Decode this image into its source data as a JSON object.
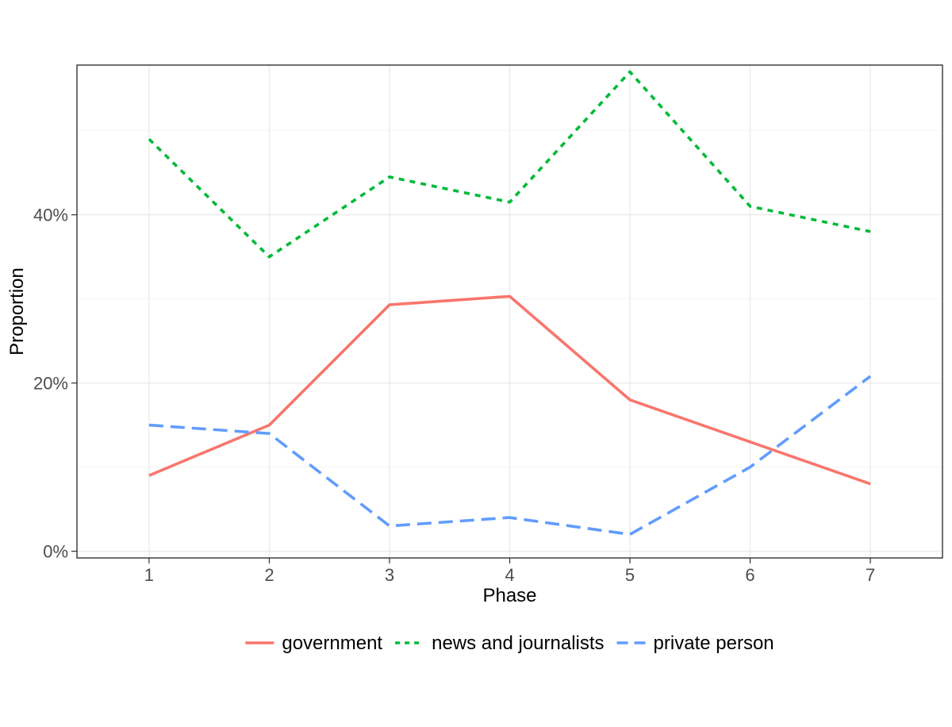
{
  "chart_data": {
    "type": "line",
    "xlabel": "Phase",
    "ylabel": "Proportion",
    "x": [
      1,
      2,
      3,
      4,
      5,
      6,
      7
    ],
    "x_ticks": [
      "1",
      "2",
      "3",
      "4",
      "5",
      "6",
      "7"
    ],
    "xlim": [
      0.4,
      7.6
    ],
    "ylim": [
      -0.008,
      0.578
    ],
    "y_ticks": [
      0,
      0.2,
      0.4
    ],
    "y_tick_labels": [
      "0%",
      "20%",
      "40%"
    ],
    "y_minor_ticks": [
      0.1,
      0.3,
      0.5
    ],
    "grid": true,
    "legend_position": "bottom",
    "series": [
      {
        "name": "government",
        "color": "#F8766D",
        "dash": "solid",
        "values": [
          0.09,
          0.15,
          0.293,
          0.303,
          0.18,
          0.13,
          0.08
        ]
      },
      {
        "name": "news and journalists",
        "color": "#00BA38",
        "dash": "dotted",
        "values": [
          0.49,
          0.35,
          0.445,
          0.415,
          0.57,
          0.41,
          0.38
        ]
      },
      {
        "name": "private person",
        "color": "#619CFF",
        "dash": "dashed",
        "values": [
          0.15,
          0.14,
          0.03,
          0.04,
          0.02,
          0.1,
          0.208
        ]
      }
    ]
  }
}
